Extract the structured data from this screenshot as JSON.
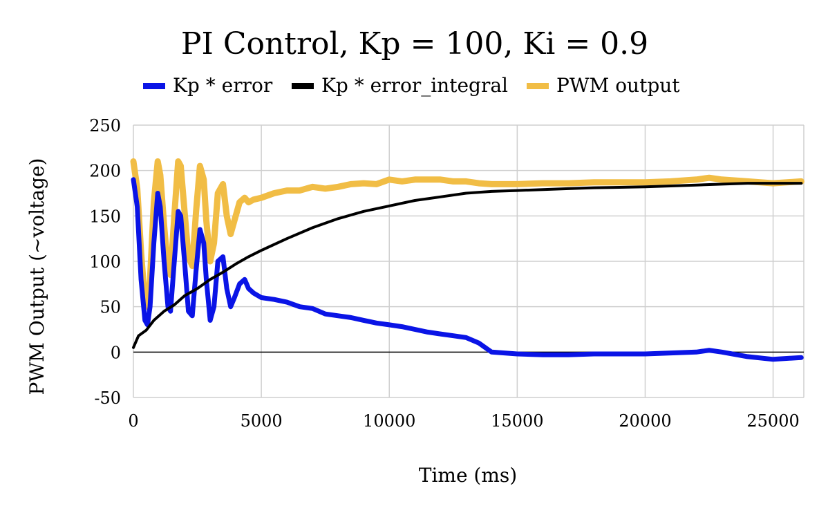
{
  "chart_data": {
    "type": "line",
    "title": "PI Control, Kp = 100, Ki = 0.9",
    "xlabel": "Time (ms)",
    "ylabel": "PWM Output (~voltage)",
    "xlim": [
      0,
      26200
    ],
    "ylim": [
      -50,
      250
    ],
    "x_ticks": [
      0,
      5000,
      10000,
      15000,
      20000,
      25000
    ],
    "y_ticks": [
      -50,
      0,
      50,
      100,
      150,
      200,
      250
    ],
    "grid": true,
    "legend_position": "top-center",
    "series": [
      {
        "name": "Kp * error",
        "color": "#0a14e6",
        "x": [
          0,
          150,
          300,
          450,
          550,
          650,
          800,
          950,
          1050,
          1200,
          1350,
          1450,
          1600,
          1750,
          1850,
          2000,
          2150,
          2300,
          2450,
          2600,
          2750,
          2850,
          3000,
          3150,
          3300,
          3500,
          3650,
          3800,
          3950,
          4150,
          4350,
          4500,
          4700,
          5000,
          5500,
          6000,
          6500,
          7000,
          7500,
          8000,
          8500,
          9000,
          9500,
          10000,
          10500,
          11000,
          11500,
          12000,
          12500,
          13000,
          13500,
          14000,
          15000,
          16000,
          17000,
          18000,
          19000,
          20000,
          21000,
          22000,
          22500,
          23000,
          24000,
          25000,
          26100
        ],
        "values": [
          190,
          160,
          80,
          35,
          30,
          50,
          120,
          175,
          160,
          100,
          50,
          45,
          100,
          155,
          150,
          100,
          45,
          40,
          90,
          135,
          120,
          80,
          35,
          50,
          100,
          105,
          70,
          50,
          60,
          75,
          80,
          70,
          65,
          60,
          58,
          55,
          50,
          48,
          42,
          40,
          38,
          35,
          32,
          30,
          28,
          25,
          22,
          20,
          18,
          16,
          10,
          0,
          -2,
          -3,
          -3,
          -2,
          -2,
          -2,
          -1,
          0,
          2,
          0,
          -5,
          -8,
          -6
        ]
      },
      {
        "name": "Kp * error_integral",
        "color": "#000000",
        "x": [
          0,
          200,
          500,
          800,
          1200,
          1600,
          2000,
          2500,
          3000,
          3500,
          4000,
          4500,
          5000,
          6000,
          7000,
          8000,
          9000,
          10000,
          11000,
          12000,
          13000,
          14000,
          15000,
          16000,
          17000,
          18000,
          19000,
          20000,
          21000,
          22000,
          23000,
          24000,
          25000,
          26100
        ],
        "values": [
          5,
          18,
          24,
          35,
          45,
          52,
          62,
          70,
          80,
          88,
          97,
          105,
          112,
          125,
          137,
          147,
          155,
          161,
          167,
          171,
          175,
          177,
          178,
          179,
          180,
          181,
          181.5,
          182,
          183,
          184,
          185,
          186,
          186,
          186
        ]
      },
      {
        "name": "PWM output",
        "color": "#f1bd45",
        "x": [
          0,
          150,
          300,
          450,
          550,
          650,
          800,
          950,
          1050,
          1200,
          1350,
          1450,
          1600,
          1750,
          1850,
          2000,
          2150,
          2300,
          2450,
          2600,
          2750,
          2850,
          3000,
          3150,
          3300,
          3500,
          3650,
          3800,
          3950,
          4150,
          4350,
          4500,
          4700,
          5000,
          5500,
          6000,
          6500,
          7000,
          7500,
          8000,
          8500,
          9000,
          9500,
          10000,
          10500,
          11000,
          11500,
          12000,
          12500,
          13000,
          13500,
          14000,
          15000,
          16000,
          17000,
          18000,
          19000,
          20000,
          21000,
          22000,
          22500,
          23000,
          24000,
          25000,
          26100
        ],
        "values": [
          210,
          180,
          110,
          55,
          50,
          80,
          165,
          210,
          195,
          140,
          90,
          85,
          150,
          210,
          205,
          155,
          105,
          95,
          155,
          205,
          190,
          145,
          100,
          120,
          175,
          185,
          150,
          130,
          145,
          165,
          170,
          165,
          168,
          170,
          175,
          178,
          178,
          182,
          180,
          182,
          185,
          186,
          185,
          190,
          188,
          190,
          190,
          190,
          188,
          188,
          186,
          185,
          185,
          186,
          186,
          187,
          187,
          187,
          188,
          190,
          192,
          190,
          188,
          186,
          188
        ]
      }
    ]
  }
}
